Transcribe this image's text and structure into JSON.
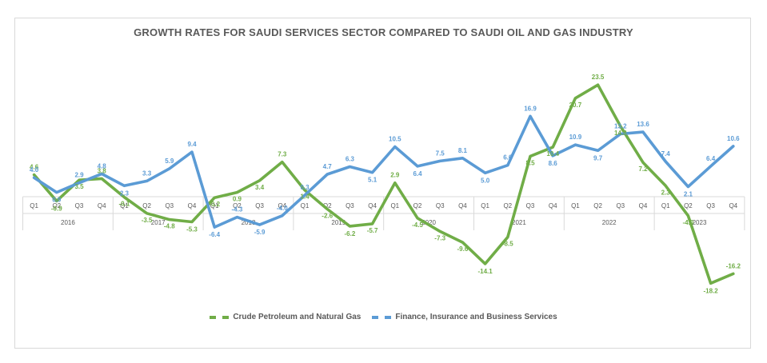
{
  "chart_data": {
    "type": "line",
    "title": "GROWTH RATES FOR SAUDI SERVICES SECTOR COMPARED TO SAUDI OIL AND GAS INDUSTRY",
    "years": [
      "2016",
      "2017",
      "2018",
      "2019",
      "2020",
      "2021",
      "2022",
      "2023"
    ],
    "quarters": [
      "Q1",
      "Q2",
      "Q3",
      "Q4"
    ],
    "categories": [
      "2016 Q1",
      "2016 Q2",
      "2016 Q3",
      "2016 Q4",
      "2017 Q1",
      "2017 Q2",
      "2017 Q3",
      "2017 Q4",
      "2018 Q1",
      "2018 Q2",
      "2018 Q3",
      "2018 Q4",
      "2019 Q1",
      "2019 Q2",
      "2019 Q3",
      "2019 Q4",
      "2020 Q1",
      "2020 Q2",
      "2020 Q3",
      "2020 Q4",
      "2021 Q1",
      "2021 Q2",
      "2021 Q3",
      "2021 Q4",
      "2022 Q1",
      "2022 Q2",
      "2022 Q3",
      "2022 Q4",
      "2023 Q1",
      "2023 Q2",
      "2023 Q3",
      "2023 Q4"
    ],
    "series": [
      {
        "name": "Crude Petroleum and Natural Gas",
        "color": "#70ad47",
        "values": [
          4.6,
          -0.9,
          3.5,
          3.8,
          -0.1,
          -3.5,
          -4.8,
          -5.3,
          -0.2,
          0.9,
          3.4,
          7.3,
          1.4,
          -2.6,
          -6.2,
          -5.7,
          2.9,
          -4.5,
          -7.3,
          -9.6,
          -14.1,
          -8.5,
          8.5,
          10.4,
          20.7,
          23.5,
          14.8,
          7.2,
          2.3,
          -4.0,
          -18.2,
          -16.2
        ],
        "labels": [
          "4.6",
          "-0.9",
          "3.5",
          "3.8",
          "-0.1",
          "-3.5",
          "-4.8",
          "-5.3",
          "-0.2",
          "0.9",
          "3.4",
          "7.3",
          "1.4",
          "-2.6",
          "-6.2",
          "-5.7",
          "2.9",
          "-4.5",
          "-7.3",
          "-9.6",
          "-14.1",
          "-8.5",
          "8.5",
          "10.4",
          "20.7",
          "23.5",
          "14.8",
          "7.2",
          "2.3",
          "-4.0",
          "-18.2",
          "-16.2"
        ]
      },
      {
        "name": "Finance, Insurance and Business Services",
        "color": "#5b9bd5",
        "values": [
          4.0,
          0.9,
          2.9,
          4.8,
          2.3,
          3.3,
          5.9,
          9.4,
          -6.4,
          -4.3,
          -5.9,
          -4.0,
          0.3,
          4.7,
          6.3,
          5.1,
          10.5,
          6.4,
          7.5,
          8.1,
          5.0,
          6.6,
          16.9,
          8.6,
          10.9,
          9.7,
          13.2,
          13.6,
          7.4,
          2.1,
          6.4,
          10.6
        ],
        "labels": [
          "4.0",
          "0.9",
          "2.9",
          "4.8",
          "2.3",
          "3.3",
          "5.9",
          "9.4",
          "-6.4",
          "-4.3",
          "-5.9",
          "-4.0",
          "0.3",
          "4.7",
          "6.3",
          "5.1",
          "10.5",
          "6.4",
          "7.5",
          "8.1",
          "5.0",
          "6.6",
          "16.9",
          "8.6",
          "10.9",
          "9.7",
          "13.2",
          "13.6",
          "7.4",
          "2.1",
          "6.4",
          "10.6"
        ]
      }
    ],
    "legend_position": "bottom",
    "grid": false
  }
}
